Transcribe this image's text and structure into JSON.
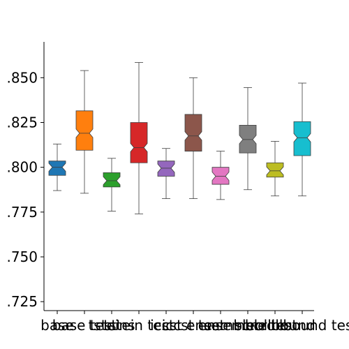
{
  "chart_data": {
    "type": "box",
    "notched": true,
    "title": "",
    "xlabel": "",
    "ylabel": "",
    "ylim": [
      0.72,
      0.87
    ],
    "yticks": [
      0.725,
      0.75,
      0.775,
      0.8,
      0.825,
      0.85
    ],
    "ytick_labels": [
      ".725",
      ".750",
      ".775",
      ".800",
      ".825",
      ".850"
    ],
    "categories": [
      "base",
      "base test",
      "tsteins",
      "tstein test",
      "iccst",
      "iccst test",
      "ensemble",
      "ensemble test",
      "scrollbound",
      "scrollbound test"
    ],
    "boxes": [
      {
        "category": "base",
        "color": "#1f77b4",
        "whisker_low": 0.787,
        "q1": 0.7955,
        "median": 0.8,
        "q3": 0.8035,
        "whisker_high": 0.813
      },
      {
        "category": "base test",
        "color": "#ff7f0e",
        "whisker_low": 0.7855,
        "q1": 0.8095,
        "median": 0.819,
        "q3": 0.8315,
        "whisker_high": 0.854
      },
      {
        "category": "tsteins",
        "color": "#2ca02c",
        "whisker_low": 0.7755,
        "q1": 0.789,
        "median": 0.7925,
        "q3": 0.797,
        "whisker_high": 0.805
      },
      {
        "category": "tstein test",
        "color": "#d62728",
        "whisker_low": 0.774,
        "q1": 0.8025,
        "median": 0.811,
        "q3": 0.825,
        "whisker_high": 0.8585
      },
      {
        "category": "iccst",
        "color": "#9467bd",
        "whisker_low": 0.7825,
        "q1": 0.795,
        "median": 0.7995,
        "q3": 0.8035,
        "whisker_high": 0.8105
      },
      {
        "category": "iccst test",
        "color": "#8c564b",
        "whisker_low": 0.7825,
        "q1": 0.809,
        "median": 0.8175,
        "q3": 0.8295,
        "whisker_high": 0.85
      },
      {
        "category": "ensemble",
        "color": "#e377c2",
        "whisker_low": 0.782,
        "q1": 0.7905,
        "median": 0.795,
        "q3": 0.8,
        "whisker_high": 0.809
      },
      {
        "category": "ensemble test",
        "color": "#7f7f7f",
        "whisker_low": 0.7875,
        "q1": 0.808,
        "median": 0.8155,
        "q3": 0.8235,
        "whisker_high": 0.8445
      },
      {
        "category": "scrollbound",
        "color": "#bcbd22",
        "whisker_low": 0.784,
        "q1": 0.7945,
        "median": 0.798,
        "q3": 0.8025,
        "whisker_high": 0.8145
      },
      {
        "category": "scrollbound test",
        "color": "#17becf",
        "whisker_low": 0.784,
        "q1": 0.8065,
        "median": 0.8165,
        "q3": 0.8255,
        "whisker_high": 0.847
      }
    ]
  }
}
